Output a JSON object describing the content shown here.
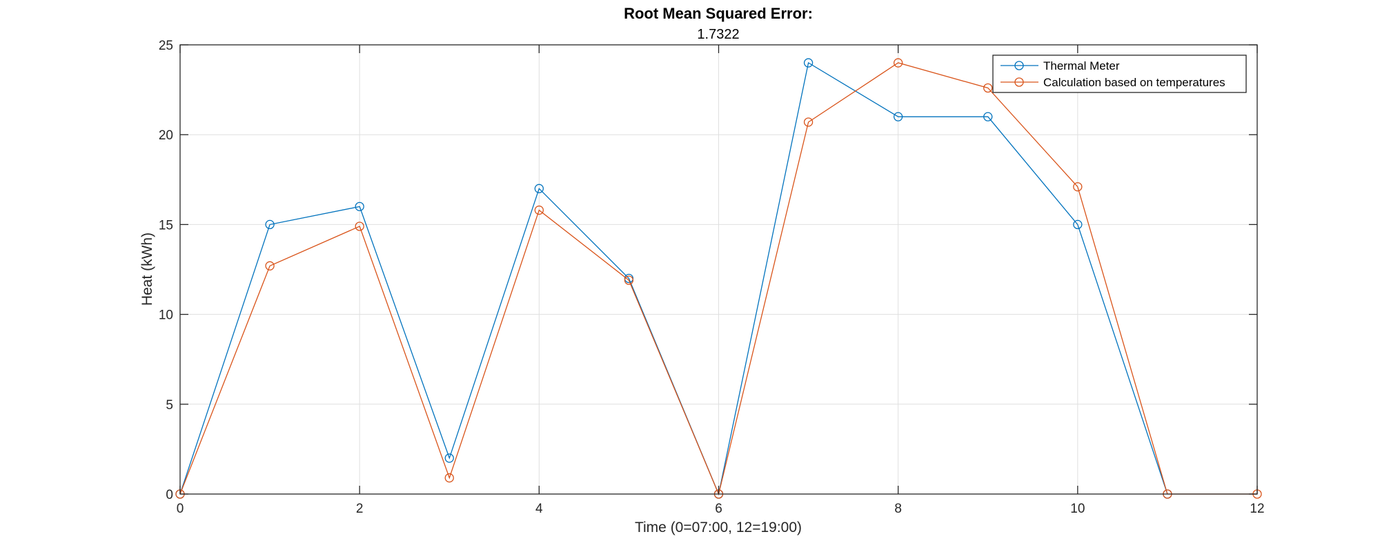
{
  "chart_data": {
    "type": "line",
    "title": "Root Mean Squared Error:",
    "subtitle": "1.7322",
    "xlabel": "Time (0=07:00, 12=19:00)",
    "ylabel": "Heat (kWh)",
    "xlim": [
      0,
      12
    ],
    "ylim": [
      0,
      25
    ],
    "xticks": [
      0,
      2,
      4,
      6,
      8,
      10,
      12
    ],
    "yticks": [
      0,
      5,
      10,
      15,
      20,
      25
    ],
    "grid": true,
    "legend_position": "top-right",
    "x": [
      0,
      1,
      2,
      3,
      4,
      5,
      6,
      7,
      8,
      9,
      10,
      11,
      12
    ],
    "series": [
      {
        "name": "Thermal Meter",
        "color": "#0072BD",
        "marker": "circle",
        "x": [
          0,
          1,
          2,
          3,
          4,
          5,
          6,
          7,
          8,
          9,
          10,
          11
        ],
        "values": [
          0,
          15,
          16,
          2,
          17,
          12,
          0,
          24,
          21,
          21,
          15,
          0
        ]
      },
      {
        "name": "Calculation based on temperatures",
        "color": "#D95319",
        "marker": "circle",
        "x": [
          0,
          1,
          2,
          3,
          4,
          5,
          6,
          7,
          8,
          9,
          10,
          11,
          12
        ],
        "values": [
          0,
          12.7,
          14.9,
          0.9,
          15.8,
          11.9,
          0,
          20.7,
          24,
          22.6,
          17.1,
          0,
          0
        ]
      }
    ]
  }
}
